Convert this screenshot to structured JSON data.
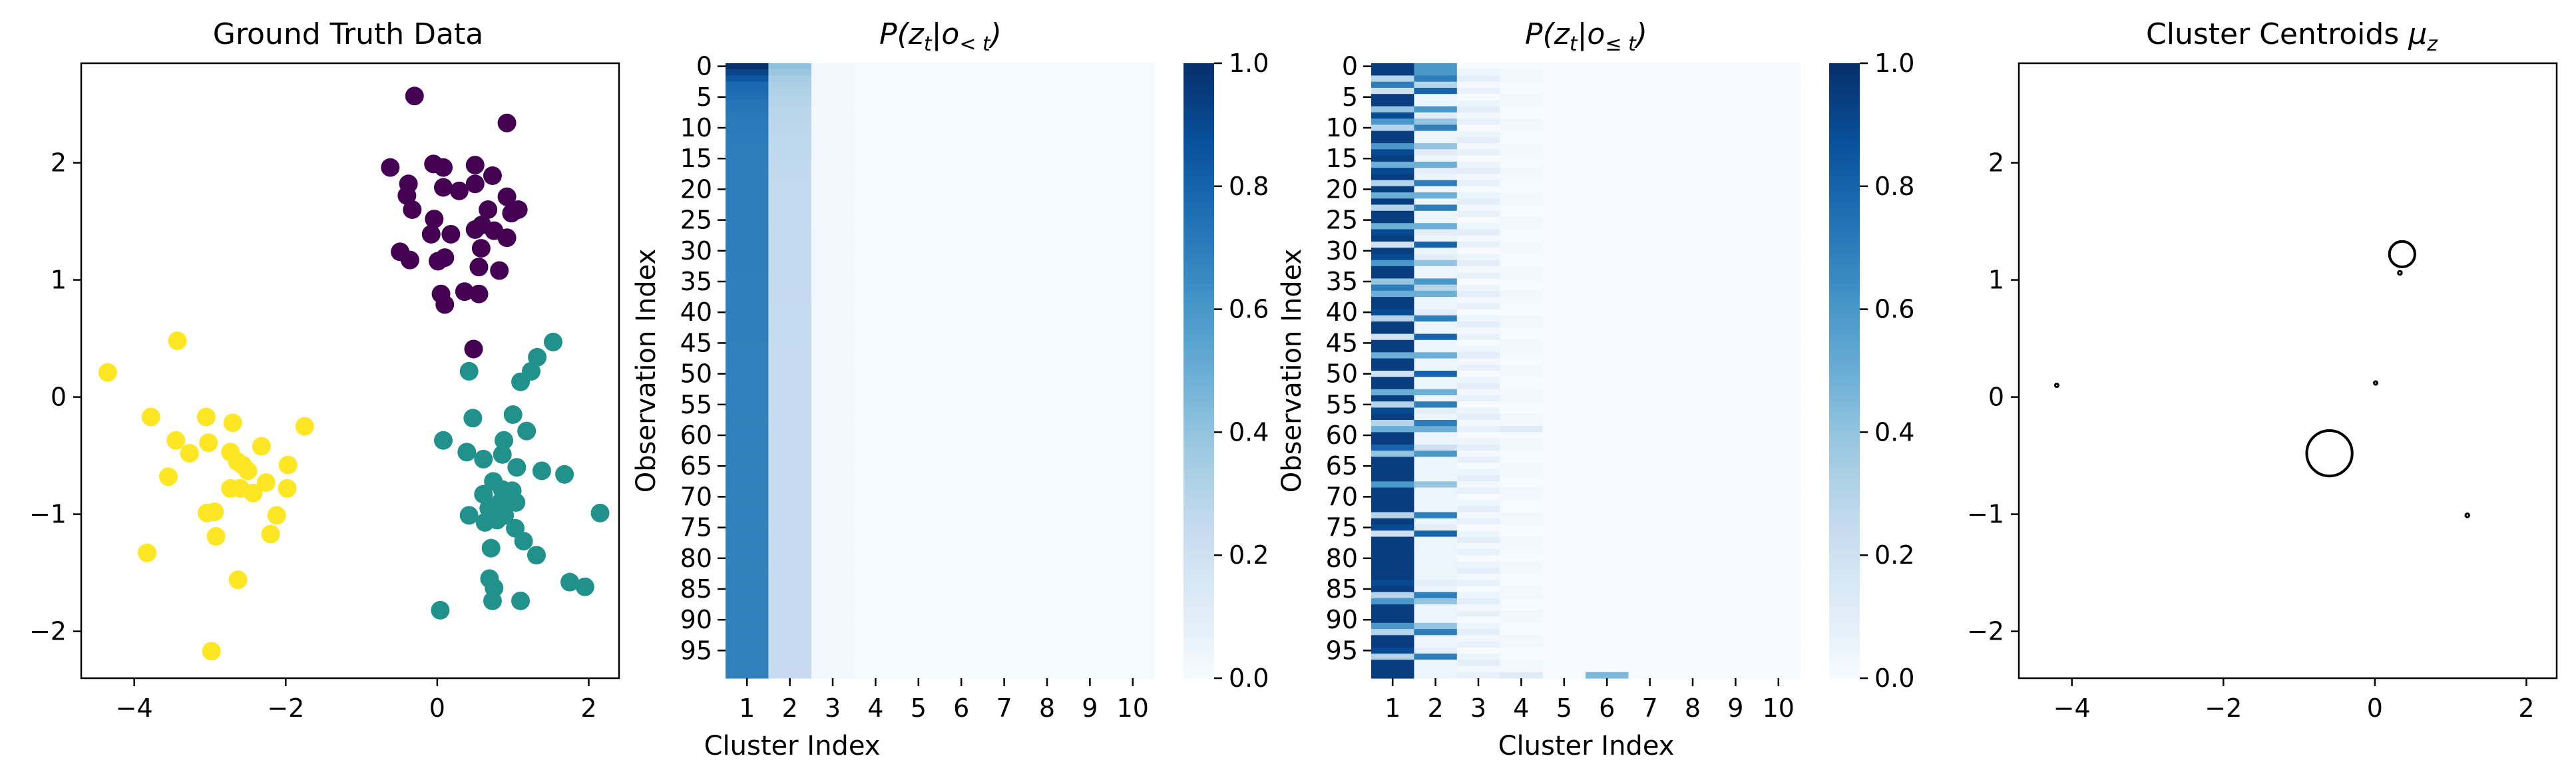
{
  "figure": {
    "background": "#ffffff"
  },
  "chart_data": [
    {
      "id": "ground-truth",
      "type": "scatter",
      "title": "Ground Truth Data",
      "xlabel": "",
      "ylabel": "",
      "xlim": [
        -4.7,
        2.4
      ],
      "ylim": [
        -2.4,
        2.85
      ],
      "xticks": [
        -4,
        -2,
        0,
        2
      ],
      "yticks": [
        -2,
        -1,
        0,
        1,
        2
      ],
      "grid": false,
      "series": [
        {
          "color": "#440154",
          "points": [
            [
              -0.3,
              2.57
            ],
            [
              0.92,
              2.34
            ],
            [
              -0.62,
              1.96
            ],
            [
              -0.05,
              1.99
            ],
            [
              0.08,
              1.96
            ],
            [
              0.5,
              1.98
            ],
            [
              0.73,
              1.89
            ],
            [
              -0.38,
              1.82
            ],
            [
              -0.4,
              1.72
            ],
            [
              0.08,
              1.79
            ],
            [
              0.5,
              1.82
            ],
            [
              0.29,
              1.76
            ],
            [
              0.67,
              1.6
            ],
            [
              0.92,
              1.71
            ],
            [
              -0.33,
              1.6
            ],
            [
              1.07,
              1.6
            ],
            [
              0.98,
              1.57
            ],
            [
              -0.04,
              1.52
            ],
            [
              0.59,
              1.47
            ],
            [
              0.18,
              1.39
            ],
            [
              0.5,
              1.43
            ],
            [
              0.75,
              1.42
            ],
            [
              -0.08,
              1.39
            ],
            [
              0.58,
              1.27
            ],
            [
              0.92,
              1.36
            ],
            [
              -0.49,
              1.24
            ],
            [
              -0.36,
              1.17
            ],
            [
              0.1,
              1.19
            ],
            [
              0.01,
              1.16
            ],
            [
              0.55,
              1.11
            ],
            [
              0.82,
              1.08
            ],
            [
              0.36,
              0.9
            ],
            [
              0.05,
              0.88
            ],
            [
              0.55,
              0.88
            ],
            [
              0.1,
              0.79
            ],
            [
              0.48,
              0.41
            ]
          ]
        },
        {
          "color": "#21918c",
          "points": [
            [
              1.53,
              0.47
            ],
            [
              1.32,
              0.34
            ],
            [
              0.42,
              0.22
            ],
            [
              1.24,
              0.22
            ],
            [
              1.1,
              0.13
            ],
            [
              1.0,
              -0.15
            ],
            [
              0.47,
              -0.18
            ],
            [
              1.18,
              -0.29
            ],
            [
              0.08,
              -0.37
            ],
            [
              0.88,
              -0.37
            ],
            [
              0.39,
              -0.47
            ],
            [
              0.86,
              -0.49
            ],
            [
              0.61,
              -0.53
            ],
            [
              1.05,
              -0.6
            ],
            [
              1.38,
              -0.63
            ],
            [
              1.68,
              -0.66
            ],
            [
              0.74,
              -0.72
            ],
            [
              0.86,
              -0.79
            ],
            [
              0.99,
              -0.8
            ],
            [
              0.61,
              -0.83
            ],
            [
              0.83,
              -0.9
            ],
            [
              1.04,
              -0.9
            ],
            [
              0.68,
              -0.95
            ],
            [
              0.79,
              -0.97
            ],
            [
              0.89,
              -1.01
            ],
            [
              0.42,
              -1.01
            ],
            [
              2.15,
              -0.99
            ],
            [
              0.79,
              -1.05
            ],
            [
              0.63,
              -1.07
            ],
            [
              1.03,
              -1.12
            ],
            [
              1.14,
              -1.23
            ],
            [
              0.71,
              -1.29
            ],
            [
              1.31,
              -1.35
            ],
            [
              0.69,
              -1.55
            ],
            [
              0.75,
              -1.63
            ],
            [
              1.75,
              -1.58
            ],
            [
              1.95,
              -1.62
            ],
            [
              0.73,
              -1.74
            ],
            [
              1.1,
              -1.74
            ],
            [
              0.04,
              -1.82
            ]
          ]
        },
        {
          "color": "#fde725",
          "points": [
            [
              -3.43,
              0.48
            ],
            [
              -4.35,
              0.21
            ],
            [
              -3.78,
              -0.17
            ],
            [
              -3.05,
              -0.17
            ],
            [
              -2.7,
              -0.22
            ],
            [
              -1.75,
              -0.25
            ],
            [
              -3.45,
              -0.37
            ],
            [
              -3.02,
              -0.39
            ],
            [
              -2.32,
              -0.42
            ],
            [
              -3.27,
              -0.48
            ],
            [
              -2.73,
              -0.47
            ],
            [
              -2.64,
              -0.55
            ],
            [
              -2.57,
              -0.58
            ],
            [
              -1.97,
              -0.58
            ],
            [
              -2.5,
              -0.63
            ],
            [
              -3.55,
              -0.68
            ],
            [
              -2.26,
              -0.73
            ],
            [
              -2.73,
              -0.78
            ],
            [
              -2.6,
              -0.78
            ],
            [
              -1.98,
              -0.78
            ],
            [
              -2.43,
              -0.82
            ],
            [
              -2.94,
              -0.98
            ],
            [
              -3.04,
              -0.99
            ],
            [
              -2.12,
              -1.01
            ],
            [
              -3.83,
              -1.33
            ],
            [
              -2.92,
              -1.19
            ],
            [
              -2.2,
              -1.17
            ],
            [
              -2.63,
              -1.56
            ],
            [
              -2.98,
              -2.17
            ]
          ]
        }
      ]
    },
    {
      "id": "heatmap-prior",
      "type": "heatmap",
      "title_prefix": "P(z",
      "title_sub": "t",
      "title_cond": "|o",
      "title_cond_sub": "< t",
      "title_suffix": ")",
      "ylabel": "Observation Index",
      "xlabel": "Cluster Index",
      "colormap": [
        "#f7fbff",
        "#deebf7",
        "#c6dbef",
        "#9ecae1",
        "#6baed6",
        "#4292c6",
        "#2171b5",
        "#08519c",
        "#08306b"
      ],
      "vmin": 0,
      "vmax": 1,
      "colorbar_ticks": [
        "0.0",
        "0.2",
        "0.4",
        "0.6",
        "0.8",
        "1.0"
      ],
      "x_tick_labels": [
        "1",
        "2",
        "3",
        "4",
        "5",
        "6",
        "7",
        "8",
        "9",
        "10"
      ],
      "y_tick_labels": [
        "0",
        "5",
        "10",
        "15",
        "20",
        "25",
        "30",
        "35",
        "40",
        "45",
        "50",
        "55",
        "60",
        "65",
        "70",
        "75",
        "80",
        "85",
        "90",
        "95"
      ],
      "rows": 100,
      "cols": 10,
      "col1_profile": [
        [
          0,
          1.0
        ],
        [
          1,
          0.92
        ],
        [
          3,
          0.78
        ],
        [
          8,
          0.72
        ],
        [
          15,
          0.7
        ],
        [
          30,
          0.7
        ],
        [
          60,
          0.69
        ],
        [
          99,
          0.69
        ]
      ],
      "col2_profile": [
        [
          0,
          0.42
        ],
        [
          2,
          0.35
        ],
        [
          6,
          0.3
        ],
        [
          10,
          0.28
        ],
        [
          20,
          0.26
        ],
        [
          50,
          0.25
        ],
        [
          99,
          0.25
        ]
      ],
      "col3_level": 0.03,
      "other_level": 0.01
    },
    {
      "id": "heatmap-posterior",
      "type": "heatmap",
      "title_prefix": "P(z",
      "title_sub": "t",
      "title_cond": "|o",
      "title_cond_sub": "≤ t",
      "title_suffix": ")",
      "ylabel": "Observation Index",
      "xlabel": "Cluster Index",
      "colormap": [
        "#f7fbff",
        "#deebf7",
        "#c6dbef",
        "#9ecae1",
        "#6baed6",
        "#4292c6",
        "#2171b5",
        "#08519c",
        "#08306b"
      ],
      "vmin": 0,
      "vmax": 1,
      "colorbar_ticks": [
        "0.0",
        "0.2",
        "0.4",
        "0.6",
        "0.8",
        "1.0"
      ],
      "x_tick_labels": [
        "1",
        "2",
        "3",
        "4",
        "5",
        "6",
        "7",
        "8",
        "9",
        "10"
      ],
      "y_tick_labels": [
        "0",
        "5",
        "10",
        "15",
        "20",
        "25",
        "30",
        "35",
        "40",
        "45",
        "50",
        "55",
        "60",
        "65",
        "70",
        "75",
        "80",
        "85",
        "90",
        "95"
      ],
      "rows": 100,
      "cols": 10,
      "matrix_col1": [
        0.95,
        0.95,
        0.3,
        0.7,
        0.2,
        0.95,
        0.95,
        0.4,
        0.9,
        0.6,
        0.3,
        0.95,
        0.95,
        0.6,
        0.9,
        0.95,
        0.5,
        0.9,
        0.95,
        0.3,
        0.95,
        0.5,
        0.95,
        0.3,
        0.95,
        0.95,
        0.5,
        0.9,
        0.95,
        0.2,
        0.95,
        0.9,
        0.6,
        0.95,
        0.95,
        0.4,
        0.7,
        0.5,
        0.95,
        0.95,
        0.9,
        0.3,
        0.95,
        0.95,
        0.2,
        0.95,
        0.95,
        0.5,
        0.95,
        0.95,
        0.2,
        0.95,
        0.95,
        0.5,
        0.95,
        0.3,
        0.9,
        0.95,
        0.3,
        0.5,
        0.95,
        0.95,
        0.8,
        0.4,
        0.95,
        0.95,
        0.95,
        0.95,
        0.6,
        0.95,
        0.95,
        0.95,
        0.95,
        0.3,
        0.95,
        0.9,
        0.2,
        0.95,
        0.95,
        0.95,
        0.95,
        0.95,
        0.95,
        0.95,
        0.9,
        0.95,
        0.3,
        0.6,
        0.95,
        0.95,
        0.95,
        0.6,
        0.3,
        0.95,
        0.95,
        0.9,
        0.3,
        0.95,
        0.95,
        0.95
      ],
      "matrix_col2": [
        0.6,
        0.6,
        0.7,
        0.3,
        0.8,
        0.05,
        0.05,
        0.6,
        0.1,
        0.4,
        0.7,
        0.05,
        0.05,
        0.4,
        0.1,
        0.05,
        0.5,
        0.1,
        0.05,
        0.7,
        0.05,
        0.5,
        0.05,
        0.7,
        0.05,
        0.05,
        0.5,
        0.1,
        0.05,
        0.8,
        0.05,
        0.1,
        0.4,
        0.05,
        0.05,
        0.6,
        0.3,
        0.5,
        0.05,
        0.05,
        0.1,
        0.7,
        0.05,
        0.05,
        0.8,
        0.05,
        0.05,
        0.5,
        0.05,
        0.05,
        0.8,
        0.05,
        0.05,
        0.5,
        0.05,
        0.7,
        0.1,
        0.05,
        0.7,
        0.5,
        0.05,
        0.05,
        0.2,
        0.6,
        0.05,
        0.05,
        0.05,
        0.05,
        0.4,
        0.05,
        0.05,
        0.05,
        0.05,
        0.7,
        0.05,
        0.1,
        0.8,
        0.05,
        0.05,
        0.05,
        0.05,
        0.05,
        0.05,
        0.05,
        0.1,
        0.05,
        0.7,
        0.4,
        0.05,
        0.05,
        0.05,
        0.4,
        0.7,
        0.05,
        0.05,
        0.1,
        0.7,
        0.05,
        0.05,
        0.05
      ],
      "col3_level": 0.05,
      "col4_level": 0.02,
      "other_level": 0.005,
      "highlights": [
        [
          99,
          5,
          0.45
        ],
        [
          99,
          3,
          0.12
        ],
        [
          59,
          3,
          0.12
        ]
      ]
    },
    {
      "id": "centroids",
      "type": "scatter",
      "title_prefix": "Cluster Centroids ",
      "title_mu": "μ",
      "title_sub": "z",
      "xlim": [
        -4.7,
        2.4
      ],
      "ylim": [
        -2.4,
        2.85
      ],
      "xticks": [
        -4,
        -2,
        0,
        2
      ],
      "yticks": [
        -2,
        -1,
        0,
        1,
        2
      ],
      "grid": false,
      "points": [
        [
          0.36,
          1.22,
          0.028
        ],
        [
          0.33,
          1.06,
          0.004
        ],
        [
          -4.2,
          0.1,
          0.003
        ],
        [
          0.01,
          0.12,
          0.001
        ],
        [
          -0.6,
          -0.48,
          0.05
        ],
        [
          1.22,
          -1.01,
          0.004
        ]
      ]
    }
  ]
}
